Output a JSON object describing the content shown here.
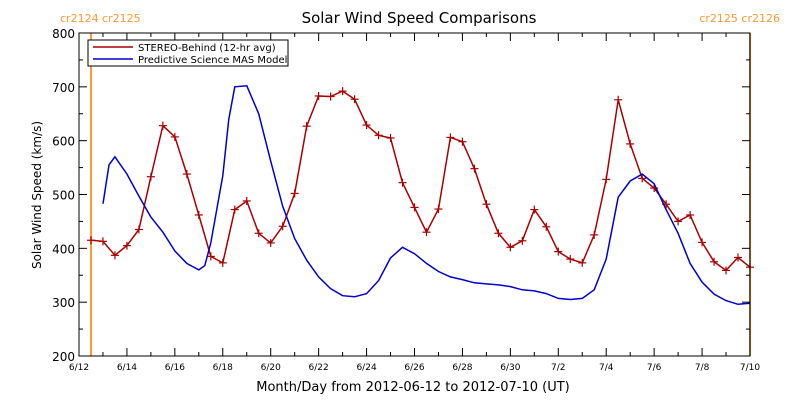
{
  "chart_data": {
    "type": "line",
    "title": "Solar Wind Speed Comparisons",
    "xlabel": "Month/Day from 2012-06-12 to 2012-07-10 (UT)",
    "ylabel": "Solar Wind Speed (km/s)",
    "xlim": [
      "2012-06-12",
      "2012-07-10"
    ],
    "ylim": [
      200,
      800
    ],
    "x_ticks": [
      {
        "date": "2012-06-12",
        "label": "6/12"
      },
      {
        "date": "2012-06-14",
        "label": "6/14"
      },
      {
        "date": "2012-06-16",
        "label": "6/16"
      },
      {
        "date": "2012-06-18",
        "label": "6/18"
      },
      {
        "date": "2012-06-20",
        "label": "6/20"
      },
      {
        "date": "2012-06-22",
        "label": "6/22"
      },
      {
        "date": "2012-06-24",
        "label": "6/24"
      },
      {
        "date": "2012-06-26",
        "label": "6/26"
      },
      {
        "date": "2012-06-28",
        "label": "6/28"
      },
      {
        "date": "2012-06-30",
        "label": "6/30"
      },
      {
        "date": "2012-07-02",
        "label": "7/2"
      },
      {
        "date": "2012-07-04",
        "label": "7/4"
      },
      {
        "date": "2012-07-06",
        "label": "7/6"
      },
      {
        "date": "2012-07-08",
        "label": "7/8"
      },
      {
        "date": "2012-07-10",
        "label": "7/10"
      }
    ],
    "y_ticks": [
      200,
      300,
      400,
      500,
      600,
      700,
      800
    ],
    "grid": false,
    "legend_position": "top-left",
    "rotation_markers": [
      {
        "date": "2012-06-12 12:00",
        "label": "cr2124 cr2125",
        "label_side": "left",
        "color": "#ff9933"
      },
      {
        "date": "2012-07-10 00:00",
        "label": "cr2125 cr2126",
        "label_side": "right",
        "color": "#ff9933"
      }
    ],
    "series": [
      {
        "name": "STEREO-Behind (12-hr avg)",
        "color": "#aa0000",
        "marker": "+",
        "x": [
          "2012-06-12 12:00",
          "2012-06-13 00:00",
          "2012-06-13 12:00",
          "2012-06-14 00:00",
          "2012-06-14 12:00",
          "2012-06-15 00:00",
          "2012-06-15 12:00",
          "2012-06-16 00:00",
          "2012-06-16 12:00",
          "2012-06-17 00:00",
          "2012-06-17 12:00",
          "2012-06-18 00:00",
          "2012-06-18 12:00",
          "2012-06-19 00:00",
          "2012-06-19 12:00",
          "2012-06-20 00:00",
          "2012-06-20 12:00",
          "2012-06-21 00:00",
          "2012-06-21 12:00",
          "2012-06-22 00:00",
          "2012-06-22 12:00",
          "2012-06-23 00:00",
          "2012-06-23 12:00",
          "2012-06-24 00:00",
          "2012-06-24 12:00",
          "2012-06-25 00:00",
          "2012-06-25 12:00",
          "2012-06-26 00:00",
          "2012-06-26 12:00",
          "2012-06-27 00:00",
          "2012-06-27 12:00",
          "2012-06-28 00:00",
          "2012-06-28 12:00",
          "2012-06-29 00:00",
          "2012-06-29 12:00",
          "2012-06-30 00:00",
          "2012-06-30 12:00",
          "2012-07-01 00:00",
          "2012-07-01 12:00",
          "2012-07-02 00:00",
          "2012-07-02 12:00",
          "2012-07-03 00:00",
          "2012-07-03 12:00",
          "2012-07-04 00:00",
          "2012-07-04 12:00",
          "2012-07-05 00:00",
          "2012-07-05 12:00",
          "2012-07-06 00:00",
          "2012-07-06 12:00",
          "2012-07-07 00:00",
          "2012-07-07 12:00",
          "2012-07-08 00:00",
          "2012-07-08 12:00",
          "2012-07-09 00:00",
          "2012-07-09 12:00",
          "2012-07-10 00:00"
        ],
        "y": [
          415,
          413,
          387,
          405,
          435,
          533,
          628,
          607,
          538,
          462,
          385,
          373,
          472,
          488,
          428,
          410,
          441,
          502,
          627,
          683,
          682,
          692,
          677,
          629,
          610,
          605,
          522,
          476,
          430,
          473,
          606,
          598,
          548,
          482,
          428,
          402,
          414,
          472,
          440,
          394,
          380,
          373,
          425,
          528,
          676,
          594,
          530,
          512,
          482,
          450,
          462,
          411,
          375,
          359,
          383,
          365
        ]
      },
      {
        "name": "Predictive Science MAS Model",
        "color": "#0000cc",
        "marker": "none",
        "x": [
          "2012-06-13 00:00",
          "2012-06-13 06:00",
          "2012-06-13 12:00",
          "2012-06-14 00:00",
          "2012-06-14 12:00",
          "2012-06-15 00:00",
          "2012-06-15 12:00",
          "2012-06-16 00:00",
          "2012-06-16 12:00",
          "2012-06-17 00:00",
          "2012-06-17 06:00",
          "2012-06-17 12:00",
          "2012-06-18 00:00",
          "2012-06-18 06:00",
          "2012-06-18 12:00",
          "2012-06-19 00:00",
          "2012-06-19 12:00",
          "2012-06-20 00:00",
          "2012-06-20 12:00",
          "2012-06-21 00:00",
          "2012-06-21 12:00",
          "2012-06-22 00:00",
          "2012-06-22 12:00",
          "2012-06-23 00:00",
          "2012-06-23 12:00",
          "2012-06-24 00:00",
          "2012-06-24 12:00",
          "2012-06-25 00:00",
          "2012-06-25 12:00",
          "2012-06-26 00:00",
          "2012-06-26 12:00",
          "2012-06-27 00:00",
          "2012-06-27 12:00",
          "2012-06-28 00:00",
          "2012-06-28 12:00",
          "2012-06-29 00:00",
          "2012-06-29 12:00",
          "2012-06-30 00:00",
          "2012-06-30 12:00",
          "2012-07-01 00:00",
          "2012-07-01 12:00",
          "2012-07-02 00:00",
          "2012-07-02 12:00",
          "2012-07-03 00:00",
          "2012-07-03 12:00",
          "2012-07-04 00:00",
          "2012-07-04 12:00",
          "2012-07-05 00:00",
          "2012-07-05 12:00",
          "2012-07-06 00:00",
          "2012-07-06 12:00",
          "2012-07-07 00:00",
          "2012-07-07 12:00",
          "2012-07-08 00:00",
          "2012-07-08 12:00",
          "2012-07-09 00:00",
          "2012-07-09 12:00",
          "2012-07-10 00:00"
        ],
        "y": [
          483,
          555,
          570,
          538,
          497,
          458,
          430,
          395,
          372,
          360,
          368,
          410,
          535,
          640,
          700,
          702,
          650,
          562,
          478,
          418,
          378,
          347,
          325,
          312,
          310,
          316,
          340,
          382,
          402,
          390,
          372,
          357,
          347,
          342,
          336,
          334,
          332,
          329,
          323,
          321,
          316,
          307,
          305,
          307,
          323,
          380,
          495,
          525,
          538,
          520,
          472,
          428,
          372,
          337,
          315,
          303,
          296,
          298
        ]
      }
    ]
  }
}
